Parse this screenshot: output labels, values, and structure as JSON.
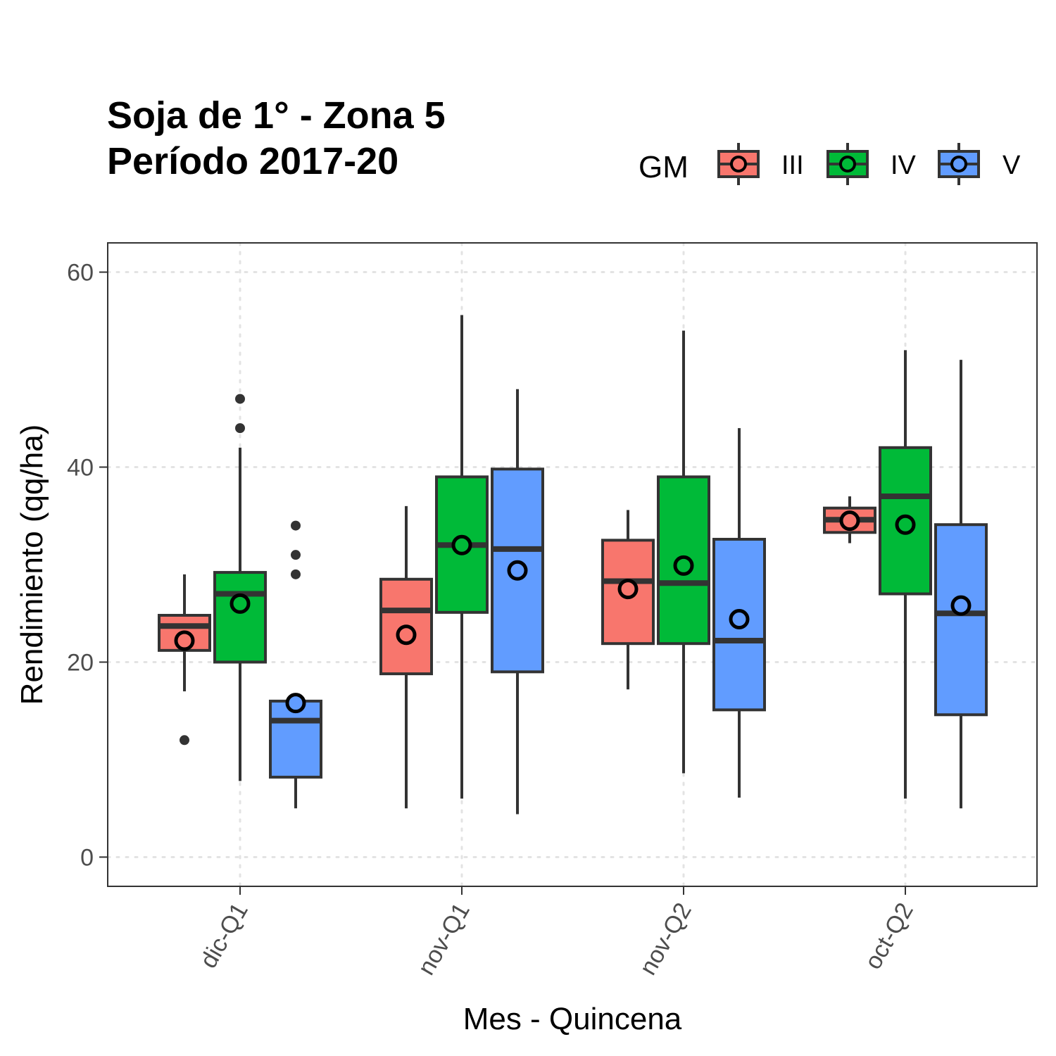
{
  "chart_data": {
    "type": "boxplot",
    "title": [
      "Soja de 1° - Zona 5",
      "Período 2017-20"
    ],
    "xlabel": "Mes - Quincena",
    "ylabel": "Rendimiento (qq/ha)",
    "ylim": [
      -3,
      63
    ],
    "yticks": [
      0,
      20,
      40,
      60
    ],
    "grid": "dotted",
    "legend": {
      "title": "GM",
      "position": "top-right"
    },
    "categories": [
      "dic-Q1",
      "nov-Q1",
      "nov-Q2",
      "oct-Q2"
    ],
    "series": [
      {
        "name": "III",
        "color": "#F8766D",
        "boxes": [
          {
            "whisker_low": 17,
            "q1": 21.2,
            "median": 23.7,
            "q3": 24.8,
            "whisker_high": 29,
            "mean": 22.2,
            "outliers": [
              12
            ]
          },
          {
            "whisker_low": 5,
            "q1": 18.8,
            "median": 25.3,
            "q3": 28.5,
            "whisker_high": 36,
            "mean": 22.8,
            "outliers": []
          },
          {
            "whisker_low": 17.2,
            "q1": 21.9,
            "median": 28.3,
            "q3": 32.5,
            "whisker_high": 35.6,
            "mean": 27.5,
            "outliers": []
          },
          {
            "whisker_low": 32.2,
            "q1": 33.3,
            "median": 34.6,
            "q3": 35.8,
            "whisker_high": 37,
            "mean": 34.5,
            "outliers": []
          }
        ]
      },
      {
        "name": "IV",
        "color": "#00BA38",
        "boxes": [
          {
            "whisker_low": 7.8,
            "q1": 20,
            "median": 27,
            "q3": 29.2,
            "whisker_high": 42,
            "mean": 26,
            "outliers": [
              44,
              47
            ]
          },
          {
            "whisker_low": 6,
            "q1": 25.1,
            "median": 32,
            "q3": 39,
            "whisker_high": 55.6,
            "mean": 32,
            "outliers": []
          },
          {
            "whisker_low": 8.6,
            "q1": 21.9,
            "median": 28.1,
            "q3": 39,
            "whisker_high": 54,
            "mean": 29.9,
            "outliers": []
          },
          {
            "whisker_low": 6,
            "q1": 27,
            "median": 37,
            "q3": 42,
            "whisker_high": 52,
            "mean": 34.1,
            "outliers": []
          }
        ]
      },
      {
        "name": "V",
        "color": "#619CFF",
        "boxes": [
          {
            "whisker_low": 5,
            "q1": 8.2,
            "median": 14,
            "q3": 16,
            "whisker_high": 16,
            "mean": 15.8,
            "outliers": [
              29,
              31,
              34
            ]
          },
          {
            "whisker_low": 4.4,
            "q1": 19,
            "median": 31.6,
            "q3": 39.8,
            "whisker_high": 48,
            "mean": 29.4,
            "outliers": []
          },
          {
            "whisker_low": 6.1,
            "q1": 15.1,
            "median": 22.2,
            "q3": 32.6,
            "whisker_high": 44,
            "mean": 24.4,
            "outliers": []
          },
          {
            "whisker_low": 5,
            "q1": 14.6,
            "median": 25,
            "q3": 34.1,
            "whisker_high": 51,
            "mean": 25.8,
            "outliers": []
          }
        ]
      }
    ]
  }
}
